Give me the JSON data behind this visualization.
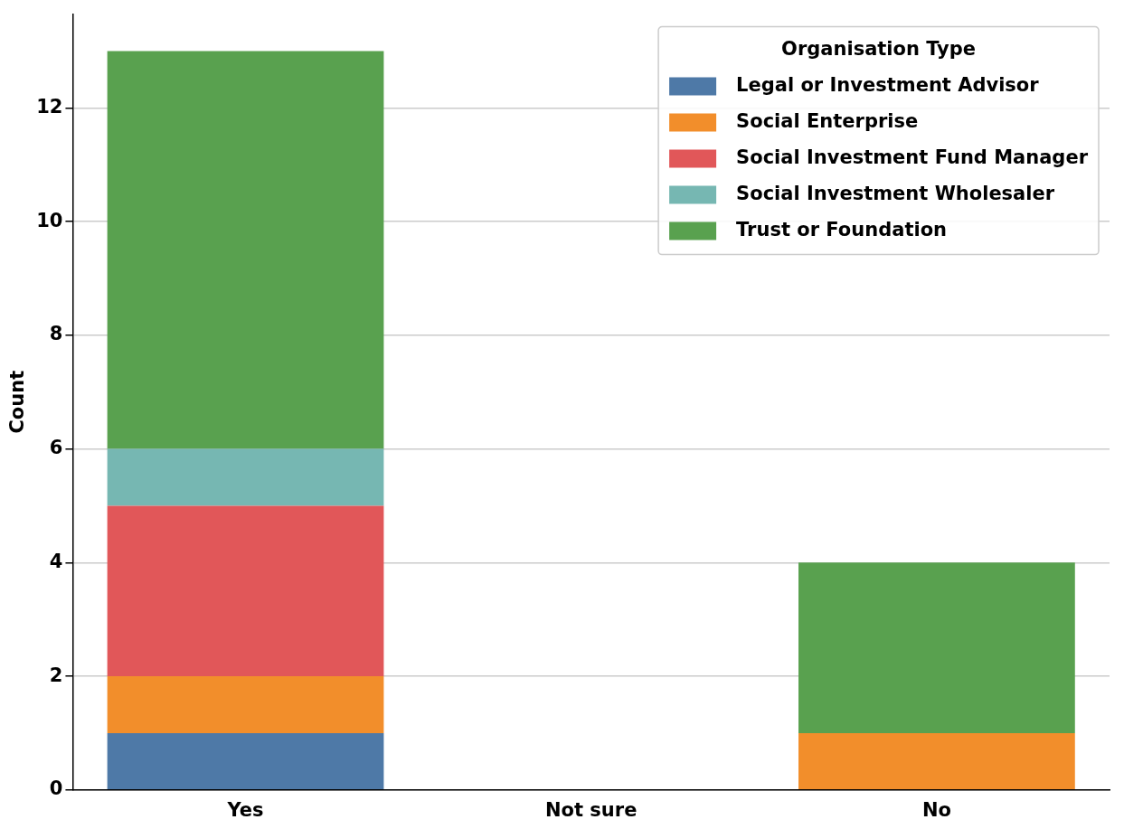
{
  "chart_data": {
    "type": "bar",
    "stacked": true,
    "ylabel": "Count",
    "legend_title": "Organisation Type",
    "legend": "top right",
    "grid": "y",
    "categories": [
      "Yes",
      "Not sure",
      "No"
    ],
    "ylim": [
      0,
      13.65
    ],
    "yticks": [
      0,
      2,
      4,
      6,
      8,
      10,
      12
    ],
    "series": [
      {
        "name": "Legal or Investment Advisor",
        "color": "#4e79a7",
        "values": [
          1,
          0,
          0
        ]
      },
      {
        "name": "Social Enterprise",
        "color": "#f28e2b",
        "values": [
          1,
          0,
          1
        ]
      },
      {
        "name": "Social Investment Fund Manager",
        "color": "#e15759",
        "values": [
          3,
          0,
          0
        ]
      },
      {
        "name": "Social Investment Wholesaler",
        "color": "#76b7b2",
        "values": [
          1,
          0,
          0
        ]
      },
      {
        "name": "Trust or Foundation",
        "color": "#59a14f",
        "values": [
          7,
          0,
          3
        ]
      }
    ]
  }
}
